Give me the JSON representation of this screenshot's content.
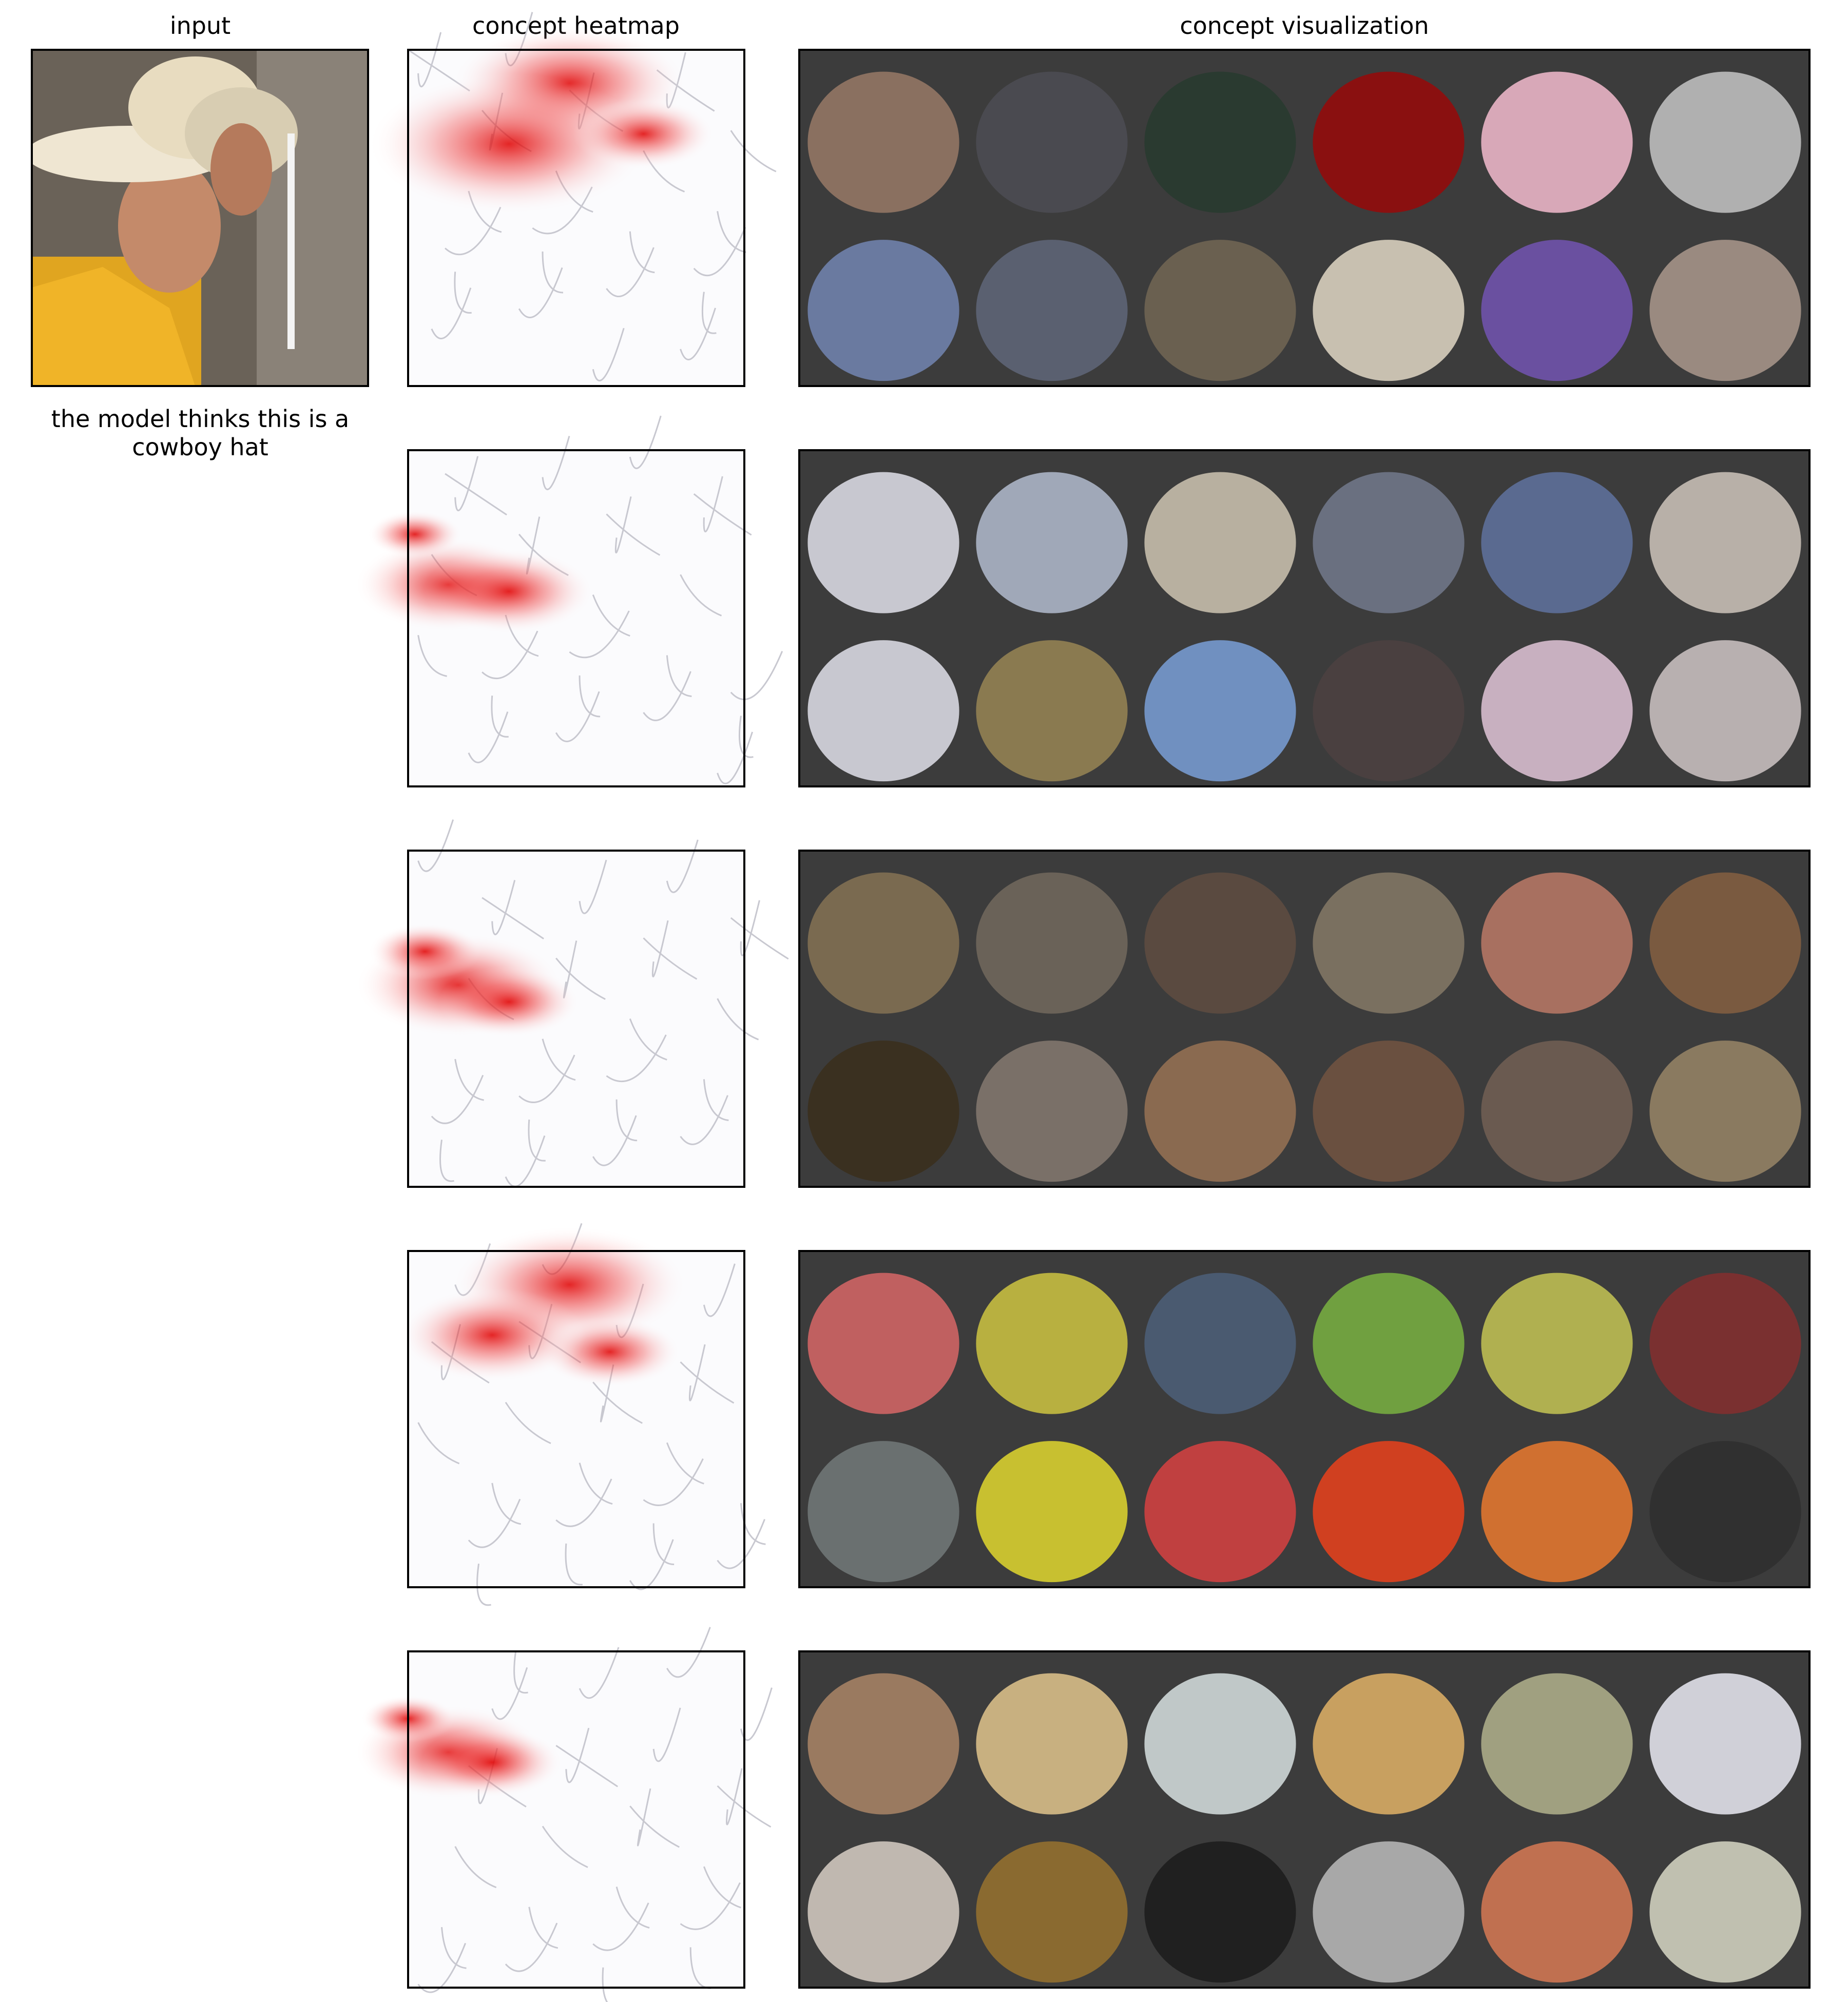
{
  "header": {
    "input_title": "input",
    "heatmap_title": "concept heatmap",
    "visualization_title": "concept visualization"
  },
  "caption": {
    "lines": [
      "the model thinks this is a",
      "cowboy hat"
    ]
  }
}
